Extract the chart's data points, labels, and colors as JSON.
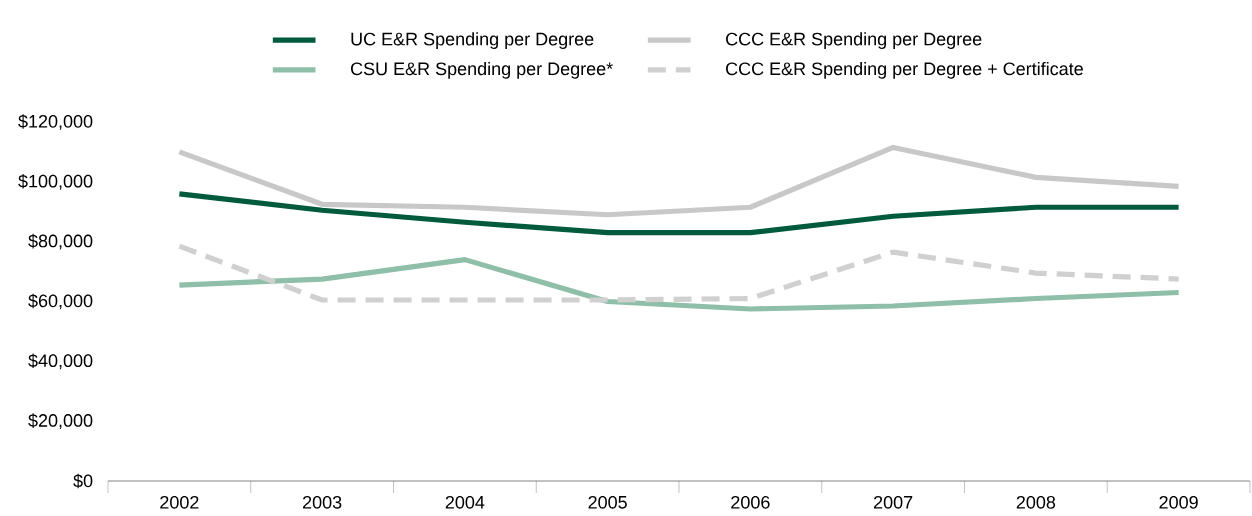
{
  "chart_data": {
    "type": "line",
    "categories": [
      "2002",
      "2003",
      "2004",
      "2005",
      "2006",
      "2007",
      "2008",
      "2009"
    ],
    "series": [
      {
        "name": "UC E&R Spending per Degree",
        "color": "#005a3c",
        "values": [
          96000,
          90500,
          86500,
          83000,
          83000,
          88500,
          91500,
          91500
        ]
      },
      {
        "name": "CCC E&R Spending per Degree",
        "color": "#c8c8c8",
        "values": [
          110000,
          92500,
          91500,
          89000,
          91500,
          111500,
          101500,
          98500
        ]
      },
      {
        "name": "CSU E&R Spending per Degree*",
        "color": "#8fbfa8",
        "values": [
          65500,
          67500,
          74000,
          60000,
          57500,
          58500,
          61000,
          63000
        ]
      },
      {
        "name": "CCC E&R Spending per Degree + Certificate",
        "color": "#d0d0d0",
        "line_style": "dashed",
        "values": [
          78500,
          60500,
          60500,
          60500,
          61000,
          76500,
          69500,
          67500
        ]
      }
    ],
    "ylim": [
      0,
      120000
    ],
    "yticks": [
      {
        "value": 0,
        "label": "$0"
      },
      {
        "value": 20000,
        "label": "$20,000"
      },
      {
        "value": 40000,
        "label": "$40,000"
      },
      {
        "value": 60000,
        "label": "$60,000"
      },
      {
        "value": 80000,
        "label": "$80,000"
      },
      {
        "value": 100000,
        "label": "$100,000"
      },
      {
        "value": 120000,
        "label": "$120,000"
      }
    ],
    "grid": false,
    "legend": "top",
    "marker": "none",
    "line_style": "solid"
  }
}
